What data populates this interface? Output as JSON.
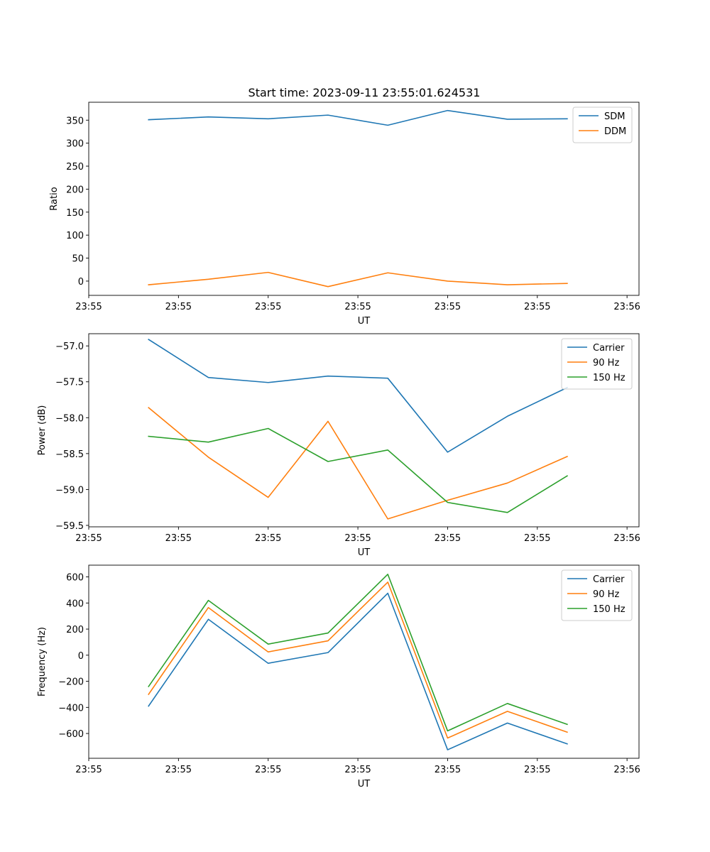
{
  "figure_title": "Start time: 2023-09-11 23:55:01.624531",
  "colors": {
    "blue": "#1f77b4",
    "orange": "#ff7f0e",
    "green": "#2ca02c"
  },
  "chart_data": [
    {
      "type": "line",
      "title": "Start time: 2023-09-11 23:55:01.624531",
      "xlabel": "UT",
      "ylabel": "Ratio",
      "x": [
        1,
        2,
        3,
        4,
        5,
        6,
        7,
        8
      ],
      "xlim": [
        0,
        9.2
      ],
      "xticks": [
        {
          "value": 0,
          "label": "23:55"
        },
        {
          "value": 1.5,
          "label": "23:55"
        },
        {
          "value": 3,
          "label": "23:55"
        },
        {
          "value": 4.5,
          "label": "23:55"
        },
        {
          "value": 6,
          "label": "23:55"
        },
        {
          "value": 7.5,
          "label": "23:55"
        },
        {
          "value": 9,
          "label": "23:56"
        }
      ],
      "ylim": [
        -31,
        389
      ],
      "yticks": [
        0,
        50,
        100,
        150,
        200,
        250,
        300,
        350
      ],
      "legend_position": "top-right",
      "series": [
        {
          "name": "SDM",
          "color": "#1f77b4",
          "values": [
            351,
            357,
            353,
            361,
            339,
            371,
            352,
            353
          ]
        },
        {
          "name": "DDM",
          "color": "#ff7f0e",
          "values": [
            -8,
            4,
            19,
            -12,
            18,
            0,
            -8,
            -5
          ]
        }
      ]
    },
    {
      "type": "line",
      "title": "",
      "xlabel": "UT",
      "ylabel": "Power (dB)",
      "x": [
        1,
        2,
        3,
        4,
        5,
        6,
        7,
        8
      ],
      "xlim": [
        0,
        9.2
      ],
      "xticks": [
        {
          "value": 0,
          "label": "23:55"
        },
        {
          "value": 1.5,
          "label": "23:55"
        },
        {
          "value": 3,
          "label": "23:55"
        },
        {
          "value": 4.5,
          "label": "23:55"
        },
        {
          "value": 6,
          "label": "23:55"
        },
        {
          "value": 7.5,
          "label": "23:55"
        },
        {
          "value": 9,
          "label": "23:56"
        }
      ],
      "ylim": [
        -59.52,
        -56.83
      ],
      "yticks": [
        -57.0,
        -57.5,
        -58.0,
        -58.5,
        -59.0,
        -59.5
      ],
      "ytick_decimals": 1,
      "legend_position": "top-right",
      "series": [
        {
          "name": "Carrier",
          "color": "#1f77b4",
          "values": [
            -56.91,
            -57.44,
            -57.51,
            -57.42,
            -57.45,
            -58.48,
            -57.98,
            -57.58
          ]
        },
        {
          "name": "90 Hz",
          "color": "#ff7f0e",
          "values": [
            -57.86,
            -58.55,
            -59.11,
            -58.05,
            -59.41,
            -59.15,
            -58.91,
            -58.54
          ]
        },
        {
          "name": "150 Hz",
          "color": "#2ca02c",
          "values": [
            -58.26,
            -58.34,
            -58.15,
            -58.61,
            -58.45,
            -59.18,
            -59.32,
            -58.81
          ]
        }
      ]
    },
    {
      "type": "line",
      "title": "",
      "xlabel": "UT",
      "ylabel": "Frequency (Hz)",
      "x": [
        1,
        2,
        3,
        4,
        5,
        6,
        7,
        8
      ],
      "xlim": [
        0,
        9.2
      ],
      "xticks": [
        {
          "value": 0,
          "label": "23:55"
        },
        {
          "value": 1.5,
          "label": "23:55"
        },
        {
          "value": 3,
          "label": "23:55"
        },
        {
          "value": 4.5,
          "label": "23:55"
        },
        {
          "value": 6,
          "label": "23:55"
        },
        {
          "value": 7.5,
          "label": "23:55"
        },
        {
          "value": 9,
          "label": "23:56"
        }
      ],
      "ylim": [
        -790,
        690
      ],
      "yticks": [
        600,
        400,
        200,
        0,
        -200,
        -400,
        -600
      ],
      "legend_position": "top-right",
      "series": [
        {
          "name": "Carrier",
          "color": "#1f77b4",
          "values": [
            -390,
            275,
            -62,
            20,
            475,
            -725,
            -520,
            -680
          ]
        },
        {
          "name": "90 Hz",
          "color": "#ff7f0e",
          "values": [
            -300,
            365,
            25,
            110,
            560,
            -635,
            -430,
            -590
          ]
        },
        {
          "name": "150 Hz",
          "color": "#2ca02c",
          "values": [
            -240,
            420,
            85,
            170,
            620,
            -580,
            -370,
            -530
          ]
        }
      ]
    }
  ]
}
